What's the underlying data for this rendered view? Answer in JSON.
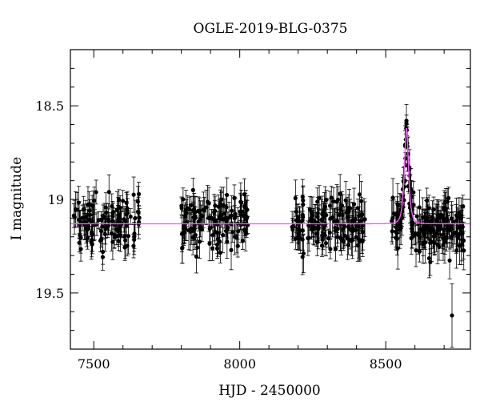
{
  "chart_data": {
    "type": "scatter",
    "title": "OGLE-2019-BLG-0375",
    "xlabel": "HJD - 2450000",
    "ylabel": "I magnitude",
    "xlim": [
      7420,
      8790
    ],
    "ylim": [
      19.8,
      18.2
    ],
    "y_inverted": true,
    "grid": false,
    "legend": "none",
    "xticks": [
      {
        "value": 7500,
        "label": "7500"
      },
      {
        "value": 8000,
        "label": "8000"
      },
      {
        "value": 8500,
        "label": "8500"
      }
    ],
    "yticks": [
      {
        "value": 18.5,
        "label": "18.5"
      },
      {
        "value": 19.0,
        "label": "19"
      },
      {
        "value": 19.5,
        "label": "19.5"
      }
    ],
    "x_minor_step": 100,
    "y_minor_step": 0.1,
    "series": [
      {
        "kind": "points_with_errorbars",
        "color": "#000000",
        "segments": [
          {
            "x_start": 7428,
            "x_end": 7660,
            "base": 19.13,
            "n": 120,
            "err": 0.07
          },
          {
            "x_start": 7800,
            "x_end": 8030,
            "base": 19.12,
            "n": 130,
            "err": 0.075
          },
          {
            "x_start": 8170,
            "x_end": 8430,
            "base": 19.12,
            "n": 150,
            "err": 0.08
          },
          {
            "x_start": 8520,
            "x_end": 8770,
            "base": 19.14,
            "n": 190,
            "err": 0.08
          }
        ],
        "peak_points": [
          {
            "x": 8566,
            "y": 18.9
          },
          {
            "x": 8568,
            "y": 18.78
          },
          {
            "x": 8569,
            "y": 18.68
          },
          {
            "x": 8570,
            "y": 18.62
          },
          {
            "x": 8571,
            "y": 18.58
          },
          {
            "x": 8572,
            "y": 18.63
          },
          {
            "x": 8573,
            "y": 18.7
          },
          {
            "x": 8575,
            "y": 18.82
          },
          {
            "x": 8577,
            "y": 18.93
          }
        ],
        "outliers": [
          {
            "x": 8727,
            "y": 19.62,
            "err": 0.17
          }
        ]
      },
      {
        "kind": "model_line",
        "color": "#ff55ff",
        "baseline": 19.13,
        "peak_x": 8571,
        "peak_y": 18.62,
        "tE": 9
      }
    ]
  }
}
